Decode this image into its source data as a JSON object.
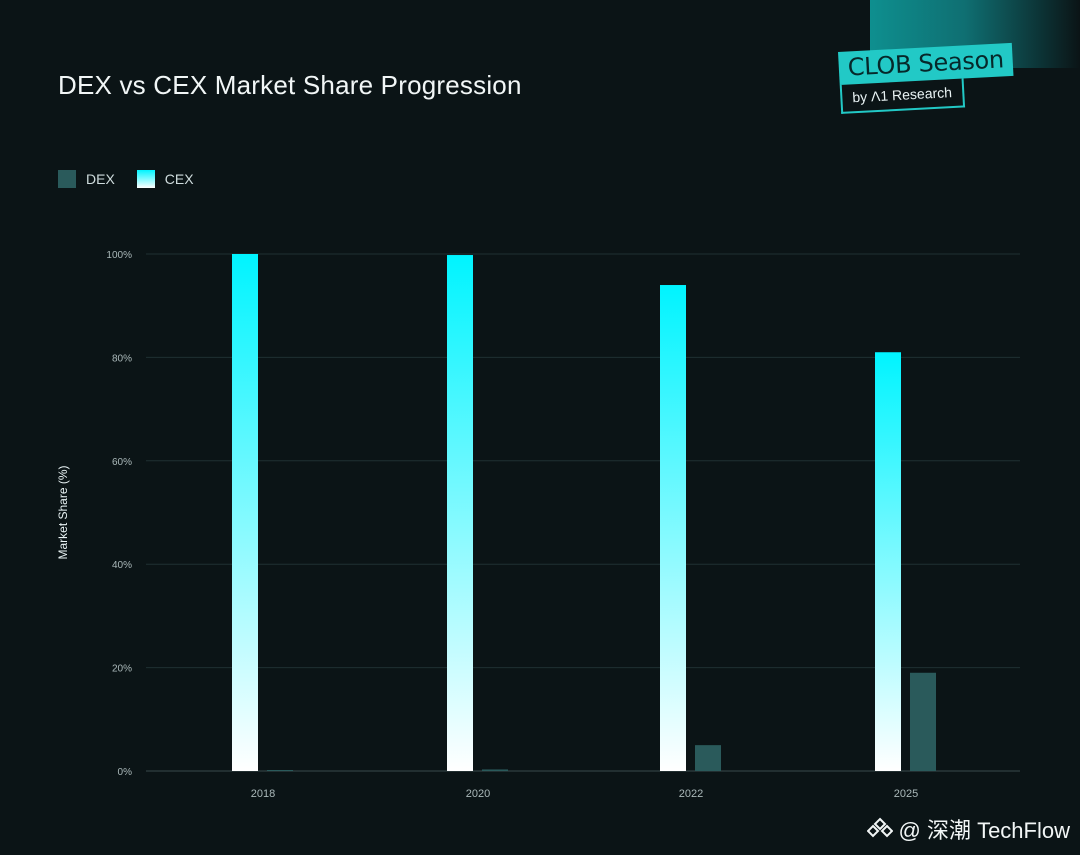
{
  "title": "DEX vs CEX Market Share Progression",
  "brand": {
    "name": "CLOB Season",
    "sub": "by Λ1 Research"
  },
  "legend": [
    {
      "label": "DEX",
      "color": "#2a5a5b"
    },
    {
      "label": "CEX",
      "color": "#00f4ff"
    }
  ],
  "watermark": "@ 深潮 TechFlow",
  "chart_data": {
    "type": "bar",
    "ylabel": "Market Share (%)",
    "xlabel": "",
    "categories": [
      "2018",
      "2020",
      "2022",
      "2025"
    ],
    "series": [
      {
        "name": "CEX",
        "values": [
          100,
          99.8,
          94,
          81
        ]
      },
      {
        "name": "DEX",
        "values": [
          0.05,
          0.3,
          5,
          19
        ]
      }
    ],
    "ylim": [
      0,
      100
    ],
    "yticks": [
      "0%",
      "20%",
      "40%",
      "60%",
      "80%",
      "100%"
    ],
    "ytick_values": [
      0,
      20,
      40,
      60,
      80,
      100
    ],
    "grid": true,
    "legend_position": "top-left"
  }
}
